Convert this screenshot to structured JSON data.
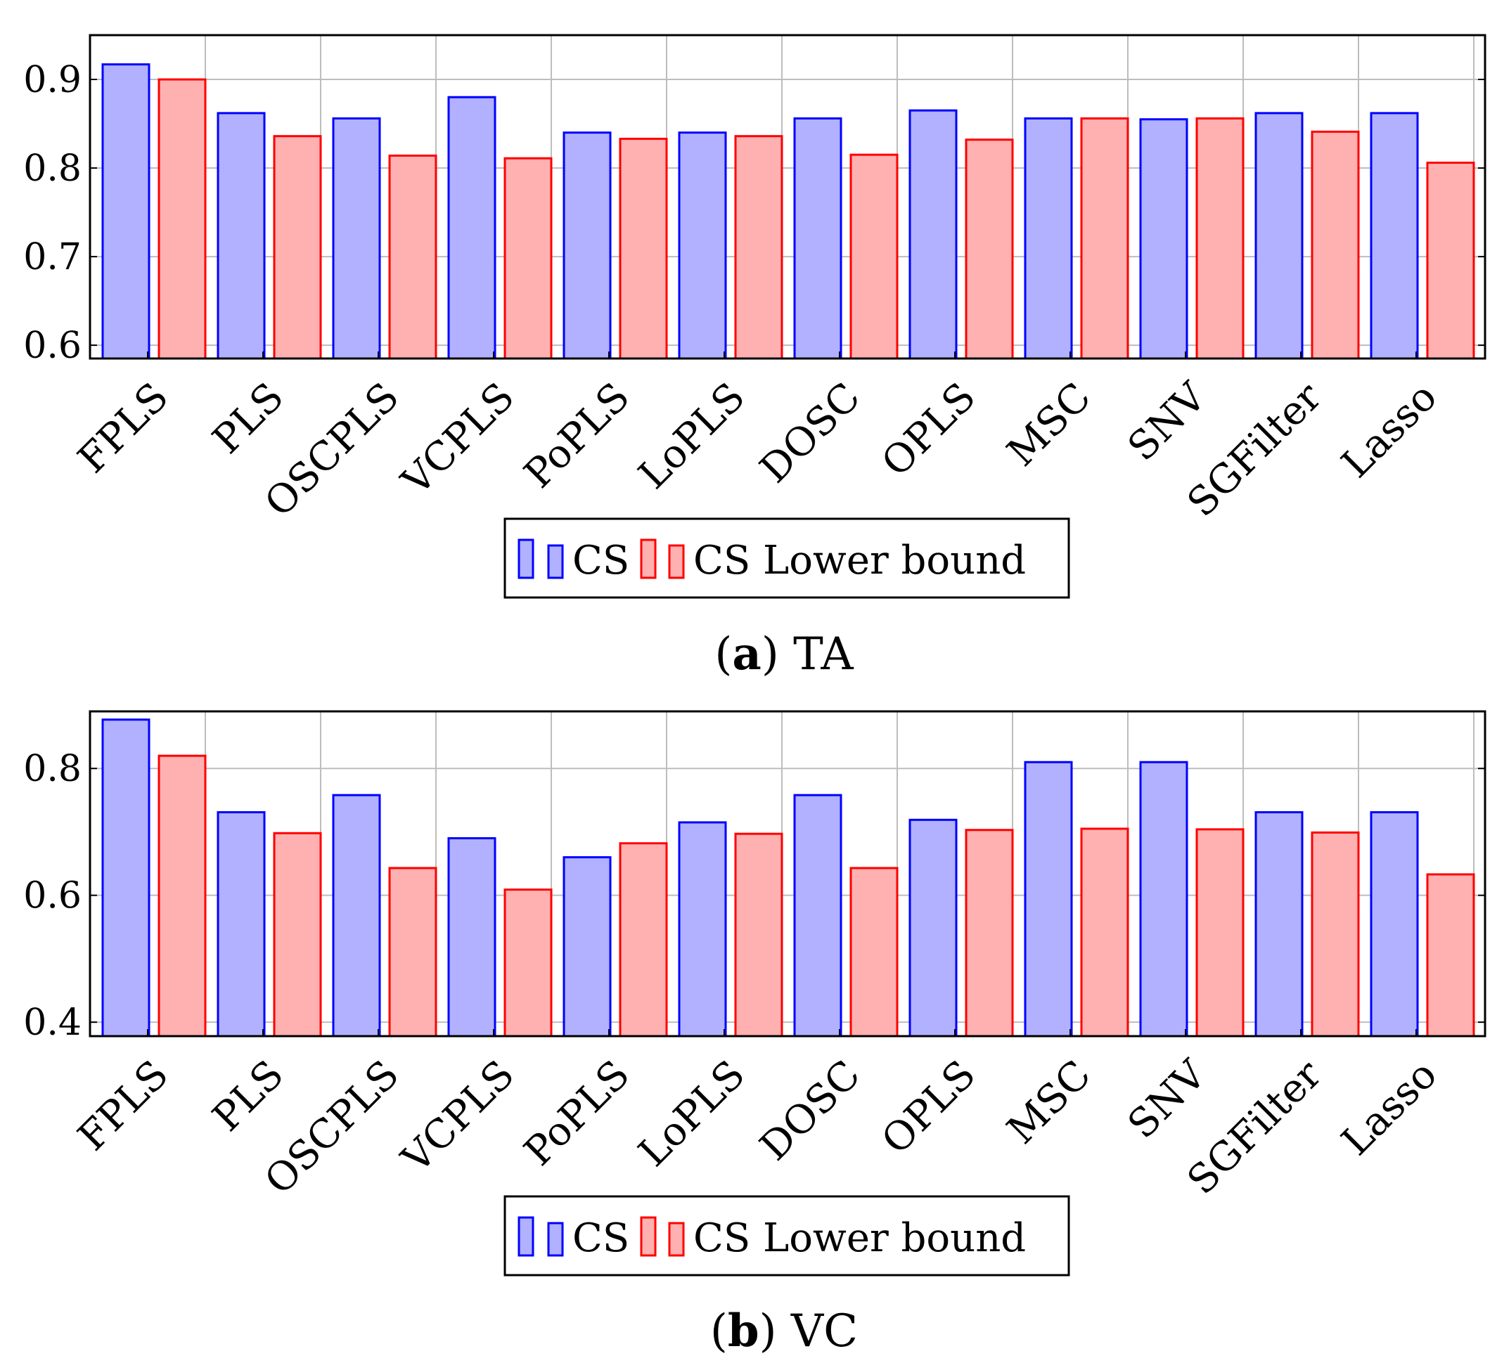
{
  "chart_data": [
    {
      "type": "bar",
      "panel": "a",
      "caption_label": "a",
      "caption_text": "TA",
      "categories": [
        "FPLS",
        "PLS",
        "OSCPLS",
        "VCPLS",
        "PoPLS",
        "LoPLS",
        "DOSC",
        "OPLS",
        "MSC",
        "SNV",
        "SGFilter",
        "Lasso"
      ],
      "series": [
        {
          "name": "CS",
          "values": [
            0.917,
            0.862,
            0.856,
            0.88,
            0.84,
            0.84,
            0.856,
            0.865,
            0.856,
            0.855,
            0.862,
            0.862
          ]
        },
        {
          "name": "CS Lower bound",
          "values": [
            0.9,
            0.836,
            0.814,
            0.811,
            0.833,
            0.836,
            0.815,
            0.832,
            0.856,
            0.856,
            0.841,
            0.806
          ]
        }
      ],
      "ylim": [
        0.585,
        0.95
      ],
      "yticks": [
        0.6,
        0.7,
        0.8,
        0.9
      ],
      "ytick_labels": [
        "0.6",
        "0.7",
        "0.8",
        "0.9"
      ],
      "grid": true,
      "legend": "bottom-center",
      "colors": {
        "cs_fill": "#b1b1ff",
        "cs_stroke": "#0000ff",
        "lb_fill": "#ffb1b1",
        "lb_stroke": "#ff0000"
      }
    },
    {
      "type": "bar",
      "panel": "b",
      "caption_label": "b",
      "caption_text": "VC",
      "categories": [
        "FPLS",
        "PLS",
        "OSCPLS",
        "VCPLS",
        "PoPLS",
        "LoPLS",
        "DOSC",
        "OPLS",
        "MSC",
        "SNV",
        "SGFilter",
        "Lasso"
      ],
      "series": [
        {
          "name": "CS",
          "values": [
            0.877,
            0.731,
            0.758,
            0.69,
            0.66,
            0.715,
            0.758,
            0.719,
            0.81,
            0.81,
            0.731,
            0.731
          ]
        },
        {
          "name": "CS Lower bound",
          "values": [
            0.82,
            0.698,
            0.643,
            0.609,
            0.682,
            0.697,
            0.643,
            0.703,
            0.705,
            0.704,
            0.699,
            0.633
          ]
        }
      ],
      "ylim": [
        0.378,
        0.89
      ],
      "yticks": [
        0.4,
        0.6,
        0.8
      ],
      "ytick_labels": [
        "0.4",
        "0.6",
        "0.8"
      ],
      "grid": true,
      "legend": "bottom-center",
      "colors": {
        "cs_fill": "#b1b1ff",
        "cs_stroke": "#0000ff",
        "lb_fill": "#ffb1b1",
        "lb_stroke": "#ff0000"
      }
    }
  ]
}
